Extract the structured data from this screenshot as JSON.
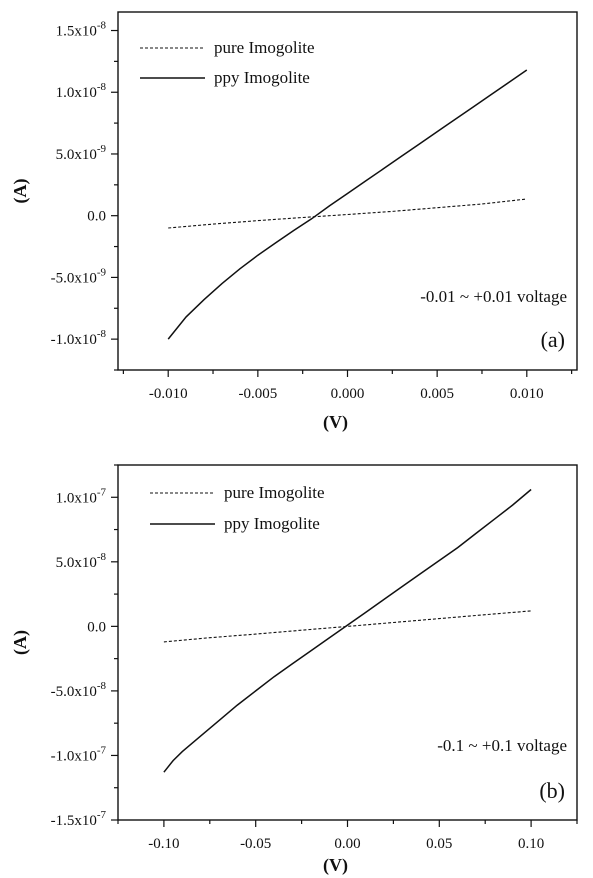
{
  "chart_data": [
    {
      "type": "line",
      "panel_label": "(a)",
      "annotation": "-0.01 ~ +0.01 voltage",
      "xlabel": "(V)",
      "ylabel": "(A)",
      "xlim": [
        -0.0128,
        0.0128
      ],
      "ylim": [
        -1.25e-08,
        1.65e-08
      ],
      "x_ticks": [
        -0.01,
        -0.005,
        0.0,
        0.005,
        0.01
      ],
      "x_tick_labels": [
        "-0.010",
        "-0.005",
        "0.000",
        "0.005",
        "0.010"
      ],
      "y_ticks": [
        -1e-08,
        -5e-09,
        0.0,
        5e-09,
        1e-08,
        1.5e-08
      ],
      "y_tick_labels": [
        {
          "mant": "-1.0x10",
          "exp": "-8"
        },
        {
          "mant": "-5.0x10",
          "exp": "-9"
        },
        {
          "mant": "0.0",
          "exp": ""
        },
        {
          "mant": "5.0x10",
          "exp": "-9"
        },
        {
          "mant": "1.0x10",
          "exp": "-8"
        },
        {
          "mant": "1.5x10",
          "exp": "-8"
        }
      ],
      "legend_position": "top-left",
      "grid": false,
      "series": [
        {
          "name": "pure Imogolite",
          "style": "dashed",
          "x": [
            -0.01,
            -0.0075,
            -0.005,
            -0.0025,
            0.0,
            0.0025,
            0.005,
            0.0075,
            0.01
          ],
          "y": [
            -1e-09,
            -6.8e-10,
            -4e-10,
            -1.5e-10,
            1e-10,
            3.5e-10,
            6.5e-10,
            9.5e-10,
            1.35e-09
          ]
        },
        {
          "name": "ppy Imogolite",
          "style": "solid",
          "x": [
            -0.01,
            -0.009,
            -0.008,
            -0.007,
            -0.006,
            -0.005,
            -0.004,
            -0.003,
            -0.002,
            -0.001,
            0.0,
            0.001,
            0.002,
            0.003,
            0.004,
            0.005,
            0.006,
            0.007,
            0.008,
            0.009,
            0.01
          ],
          "y": [
            -1e-08,
            -8.2e-09,
            -6.8e-09,
            -5.5e-09,
            -4.3e-09,
            -3.2e-09,
            -2.2e-09,
            -1.2e-09,
            -2.5e-10,
            8e-10,
            1.8e-09,
            2.8e-09,
            3.8e-09,
            4.8e-09,
            5.8e-09,
            6.8e-09,
            7.8e-09,
            8.8e-09,
            9.8e-09,
            1.08e-08,
            1.18e-08
          ]
        }
      ]
    },
    {
      "type": "line",
      "panel_label": "(b)",
      "annotation": "-0.1 ~ +0.1 voltage",
      "xlabel": "(V)",
      "ylabel": "(A)",
      "xlim": [
        -0.125,
        0.125
      ],
      "ylim": [
        -1.5e-07,
        1.25e-07
      ],
      "x_ticks": [
        -0.1,
        -0.05,
        0.0,
        0.05,
        0.1
      ],
      "x_tick_labels": [
        "-0.10",
        "-0.05",
        "0.00",
        "0.05",
        "0.10"
      ],
      "y_ticks": [
        -1.5e-07,
        -1e-07,
        -5e-08,
        0.0,
        5e-08,
        1e-07
      ],
      "y_tick_labels": [
        {
          "mant": "-1.5x10",
          "exp": "-7"
        },
        {
          "mant": "-1.0x10",
          "exp": "-7"
        },
        {
          "mant": "-5.0x10",
          "exp": "-8"
        },
        {
          "mant": "0.0",
          "exp": ""
        },
        {
          "mant": "5.0x10",
          "exp": "-8"
        },
        {
          "mant": "1.0x10",
          "exp": "-7"
        }
      ],
      "legend_position": "top-left",
      "grid": false,
      "series": [
        {
          "name": "pure Imogolite",
          "style": "dashed",
          "x": [
            -0.1,
            -0.075,
            -0.05,
            -0.025,
            0.0,
            0.025,
            0.05,
            0.075,
            0.1
          ],
          "y": [
            -1.2e-08,
            -8.8e-09,
            -6e-09,
            -3e-09,
            0.0,
            3e-09,
            6e-09,
            9e-09,
            1.2e-08
          ]
        },
        {
          "name": "ppy Imogolite",
          "style": "solid",
          "x": [
            -0.1,
            -0.095,
            -0.09,
            -0.08,
            -0.07,
            -0.06,
            -0.05,
            -0.04,
            -0.03,
            -0.02,
            -0.01,
            0.0,
            0.01,
            0.02,
            0.03,
            0.04,
            0.05,
            0.06,
            0.07,
            0.08,
            0.09,
            0.1
          ],
          "y": [
            -1.13e-07,
            -1.04e-07,
            -9.7e-08,
            -8.5e-08,
            -7.3e-08,
            -6.1e-08,
            -5e-08,
            -3.9e-08,
            -2.9e-08,
            -1.9e-08,
            -9e-09,
            1e-09,
            1.1e-08,
            2.1e-08,
            3.1e-08,
            4.1e-08,
            5.1e-08,
            6.1e-08,
            7.2e-08,
            8.3e-08,
            9.4e-08,
            1.06e-07
          ]
        }
      ]
    }
  ]
}
